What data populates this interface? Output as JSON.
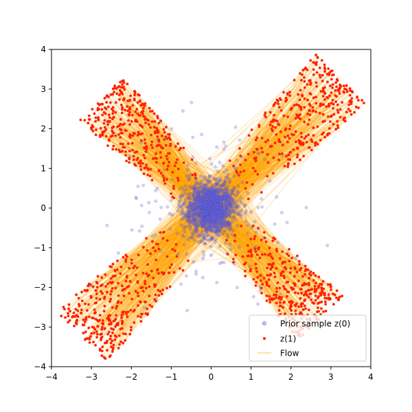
{
  "chart_data": {
    "type": "scatter",
    "title": "",
    "xlabel": "",
    "ylabel": "",
    "xlim": [
      -4,
      4
    ],
    "ylim": [
      -4,
      4
    ],
    "x_ticks": [
      -4,
      -3,
      -2,
      -1,
      0,
      1,
      2,
      3,
      4
    ],
    "y_ticks": [
      -4,
      -3,
      -2,
      -1,
      0,
      1,
      2,
      3,
      4
    ],
    "grid": false,
    "legend_position": "bottom-right",
    "distribution": "x-shaped four-arm pattern",
    "arms": [
      {
        "direction_x": 1,
        "direction_y": 1,
        "extent": 4.6,
        "half_width": 0.9
      },
      {
        "direction_x": -1,
        "direction_y": -1,
        "extent": 4.6,
        "half_width": 0.9
      },
      {
        "direction_x": -1,
        "direction_y": 1,
        "extent": 3.9,
        "half_width": 0.8
      },
      {
        "direction_x": 1,
        "direction_y": -1,
        "extent": 3.9,
        "half_width": 0.8
      }
    ],
    "series": [
      {
        "name": "Prior sample z(0)",
        "kind": "scatter",
        "color": "#6a6ad8",
        "center": [
          0,
          0
        ],
        "spread": 0.7
      },
      {
        "name": "z(1)",
        "kind": "scatter",
        "color": "#ff2200"
      },
      {
        "name": "Flow",
        "kind": "line",
        "color": "#ffa500"
      }
    ]
  },
  "legend": {
    "items": [
      {
        "label": "Prior sample z(0)",
        "color": "#6a6ad8"
      },
      {
        "label": "z(1)",
        "color": "#ff2200"
      },
      {
        "label": "Flow",
        "color": "#ffa500"
      }
    ]
  }
}
